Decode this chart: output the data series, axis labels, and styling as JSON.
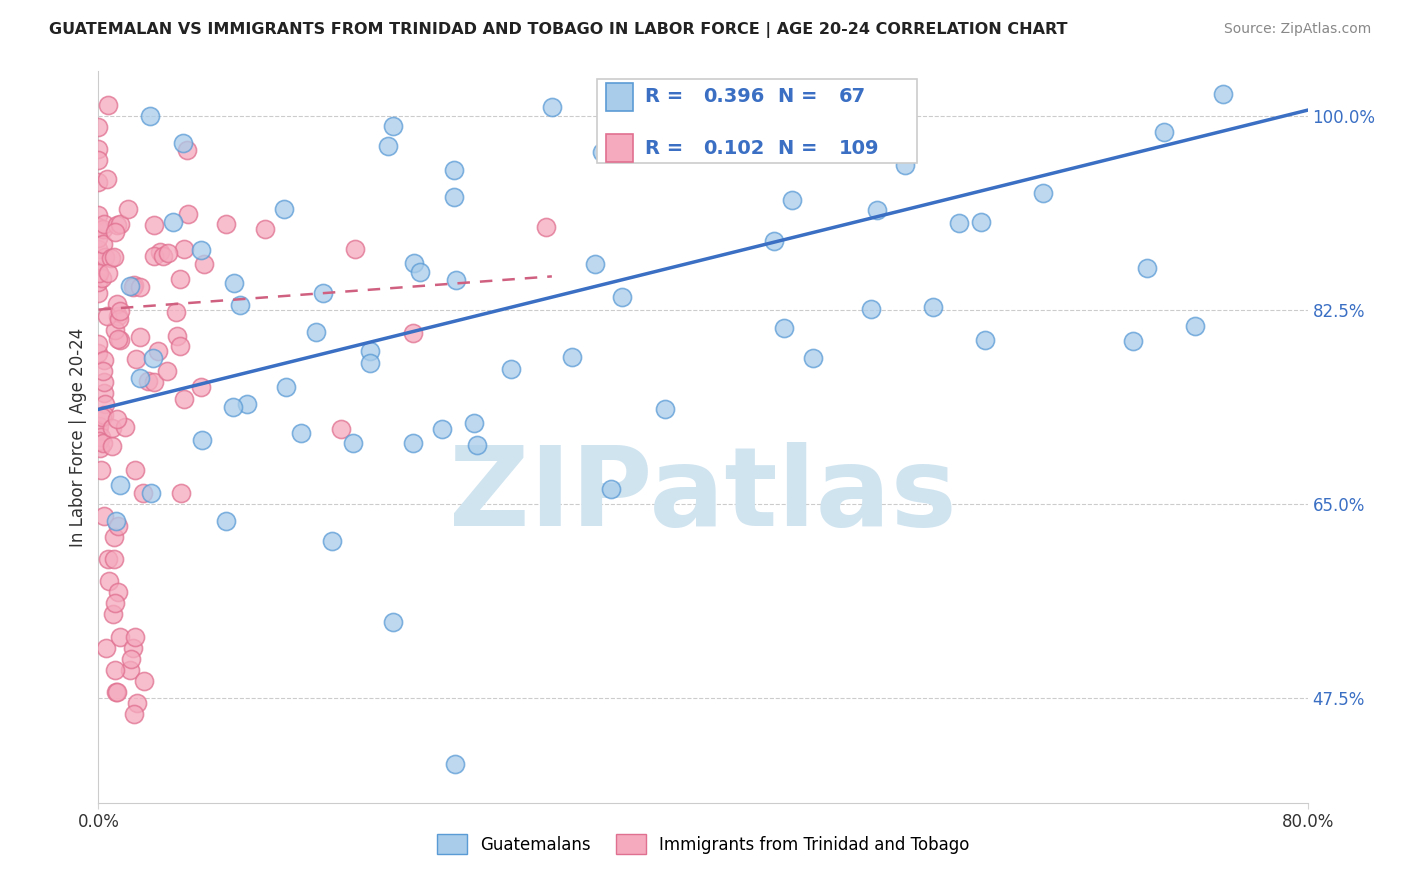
{
  "title": "GUATEMALAN VS IMMIGRANTS FROM TRINIDAD AND TOBAGO IN LABOR FORCE | AGE 20-24 CORRELATION CHART",
  "source": "Source: ZipAtlas.com",
  "ylabel": "In Labor Force | Age 20-24",
  "x_min": 0.0,
  "x_max": 0.8,
  "y_min": 0.38,
  "y_max": 1.04,
  "x_tick_labels": [
    "0.0%",
    "80.0%"
  ],
  "x_tick_pos": [
    0.0,
    0.8
  ],
  "y_ticks": [
    0.475,
    0.65,
    0.825,
    1.0
  ],
  "y_tick_labels": [
    "47.5%",
    "65.0%",
    "82.5%",
    "100.0%"
  ],
  "blue_R": 0.396,
  "blue_N": 67,
  "pink_R": 0.102,
  "pink_N": 109,
  "blue_color": "#A8CCEA",
  "pink_color": "#F5AABE",
  "blue_edge_color": "#5B9BD5",
  "pink_edge_color": "#E07090",
  "blue_line_color": "#3A6FC4",
  "pink_line_color": "#D06080",
  "watermark_color": "#D0E4F0",
  "watermark": "ZIPatlas",
  "legend_blue_label": "Guatemalans",
  "legend_pink_label": "Immigrants from Trinidad and Tobago",
  "blue_trend_x": [
    0.0,
    0.8
  ],
  "blue_trend_y": [
    0.735,
    1.005
  ],
  "pink_trend_x": [
    0.0,
    0.3
  ],
  "pink_trend_y": [
    0.825,
    0.855
  ]
}
